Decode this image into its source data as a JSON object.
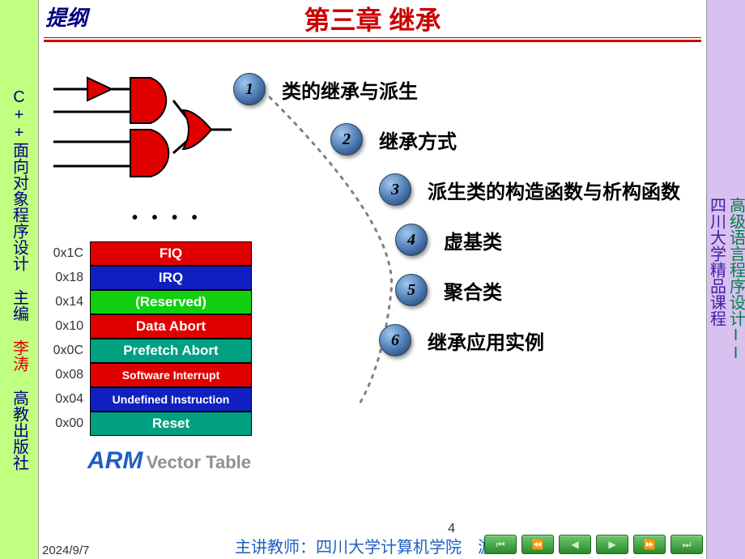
{
  "left_sidebar": {
    "line1": "C++面向对象程序设计",
    "line2": "主编",
    "line3": "李涛",
    "line4": "高教出版社",
    "bg": "#c0ff80"
  },
  "right_sidebar": {
    "line1": "高级语言程序设计II",
    "line2": "四川大学精品课程",
    "bg": "#d8c0f0"
  },
  "header_tag": "提纲",
  "title": "第三章  继承",
  "title_color": "#cc0000",
  "gates": {
    "triangle_color": "#e00000",
    "and_color": "#e00000",
    "or_color": "#e00000",
    "line_color": "#000000"
  },
  "vector_table": {
    "rows": [
      {
        "addr": "0x1C",
        "label": "FIQ",
        "bg": "#e00000",
        "fs": 17
      },
      {
        "addr": "0x18",
        "label": "IRQ",
        "bg": "#1020c0",
        "fs": 17
      },
      {
        "addr": "0x14",
        "label": "(Reserved)",
        "bg": "#10d010",
        "fs": 17
      },
      {
        "addr": "0x10",
        "label": "Data Abort",
        "bg": "#e00000",
        "fs": 17
      },
      {
        "addr": "0x0C",
        "label": "Prefetch Abort",
        "bg": "#00a080",
        "fs": 17
      },
      {
        "addr": "0x08",
        "label": "Software Interrupt",
        "bg": "#e00000",
        "fs": 14
      },
      {
        "addr": "0x04",
        "label": "Undefined Instruction",
        "bg": "#1020c0",
        "fs": 14
      },
      {
        "addr": "0x00",
        "label": "Reset",
        "bg": "#00a080",
        "fs": 17
      }
    ],
    "caption_arm": "ARM",
    "caption_sub": "Vector Table"
  },
  "toc": [
    {
      "n": "1",
      "label": "类的继承与派生"
    },
    {
      "n": "2",
      "label": "继承方式"
    },
    {
      "n": "3",
      "label": "派生类的构造函数与析构函数"
    },
    {
      "n": "4",
      "label": "虚基类"
    },
    {
      "n": "5",
      "label": "聚合类"
    },
    {
      "n": "6",
      "label": "继承应用实例"
    }
  ],
  "dotcurve_color": "#808080",
  "footer_date": "2024/9/7",
  "footer_teacher": "主讲教师：四川大学计算机学院　游洪",
  "page_num": "4",
  "nav": [
    "⏮",
    "⏪",
    "◀",
    "▶",
    "⏩",
    "⏭"
  ]
}
